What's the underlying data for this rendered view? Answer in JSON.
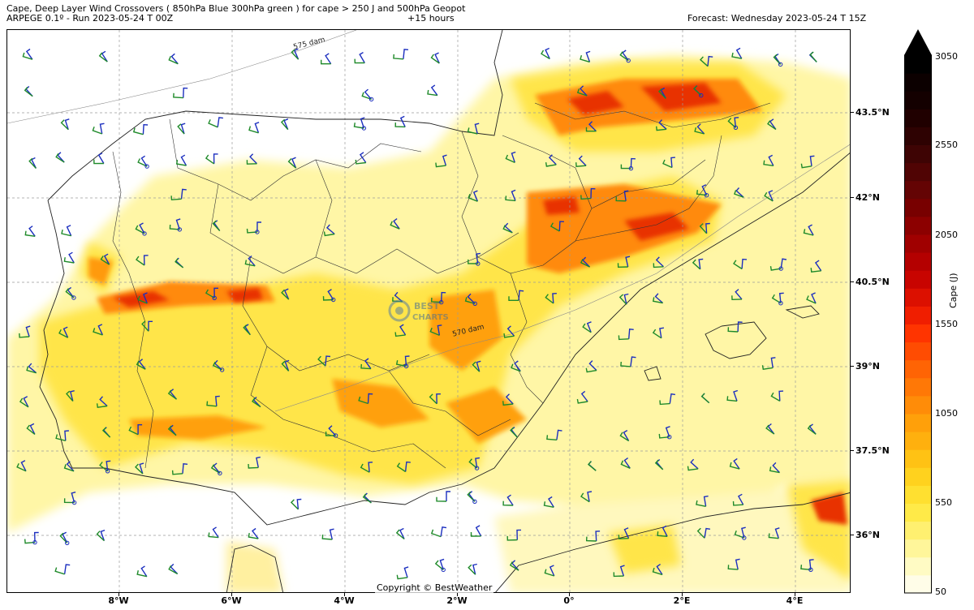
{
  "header": {
    "title": "Cape, Deep Layer Wind Crossovers ( 850hPa Blue 300hPa green ) for cape > 250 J and 500hPa Geopot",
    "model_run": "ARPEGE 0.1º - Run 2023-05-24 T 00Z",
    "lead_time": "+15 hours",
    "forecast": "Forecast: Wednesday 2023-05-24 T 15Z"
  },
  "map": {
    "latitude_labels": [
      "43.5°N",
      "42°N",
      "40.5°N",
      "39°N",
      "37.5°N",
      "36°N"
    ],
    "longitude_labels": [
      "8°W",
      "6°W",
      "4°W",
      "2°W",
      "0°",
      "2°E",
      "4°E"
    ],
    "contour_labels": [
      "575 dam",
      "570 dam"
    ],
    "copyright": "Copyright © BestWeather",
    "watermark_text": [
      "BEST",
      "CHARTS"
    ]
  },
  "colorbar": {
    "title": "Cape (J)",
    "tick_labels": [
      "3050",
      "2550",
      "2050",
      "1550",
      "1050",
      "550",
      "50"
    ],
    "colors": [
      "#fffde8",
      "#fffbc4",
      "#fff69a",
      "#fff070",
      "#ffea48",
      "#ffe030",
      "#ffd21e",
      "#ffc214",
      "#ffb00e",
      "#ffa00a",
      "#ff8c08",
      "#ff7806",
      "#ff6404",
      "#ff4c02",
      "#ff3400",
      "#f01e00",
      "#dc1000",
      "#c80400",
      "#b40000",
      "#a00000",
      "#8c0000",
      "#780000",
      "#640404",
      "#500404",
      "#3e0404",
      "#2e0202",
      "#200000",
      "#140000",
      "#0c0000",
      "#000000"
    ]
  },
  "wind_barbs": {
    "low_level_color": "#1c2fbf",
    "upper_level_color": "#1f8a2a"
  }
}
